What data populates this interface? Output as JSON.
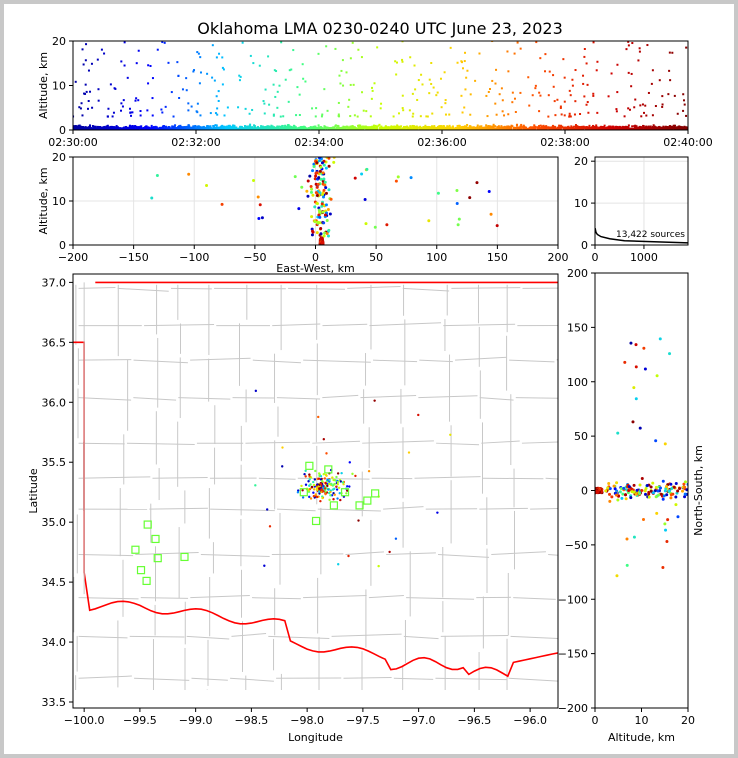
{
  "figure": {
    "title": "Oklahoma LMA 0230-0240 UTC June 23, 2023",
    "source_count_label": "13,422 sources"
  },
  "chart_data": [
    {
      "panel": "altitude-time",
      "type": "scatter",
      "xlabel": "",
      "ylabel": "Altitude, km",
      "x_ticks": [
        "02:30:00",
        "02:32:00",
        "02:34:00",
        "02:36:00",
        "02:38:00",
        "02:40:00"
      ],
      "xlim": [
        "02:30:00",
        "02:40:00"
      ],
      "ylim": [
        0,
        20
      ],
      "y_ticks": [
        0,
        10,
        20
      ],
      "color_by": "time",
      "colormap": [
        "#0000a0",
        "#0000ff",
        "#00c8ff",
        "#40ff80",
        "#c8ff00",
        "#ffd000",
        "#ff5000",
        "#d00000",
        "#800000"
      ],
      "note": "dense band of sources 0-3 km throughout; sparse sources up to 20 km"
    },
    {
      "panel": "altitude-eastwest",
      "type": "scatter",
      "xlabel": "East-West, km",
      "ylabel": "Altitude, km",
      "xlim": [
        -200,
        200
      ],
      "ylim": [
        0,
        20
      ],
      "x_ticks": [
        -200,
        -150,
        -100,
        -50,
        0,
        50,
        100,
        150,
        200
      ],
      "y_ticks": [
        0,
        10,
        20
      ],
      "grid": true
    },
    {
      "panel": "altitude-histogram",
      "type": "line",
      "xlabel": "",
      "ylabel": "",
      "xlim": [
        0,
        1900
      ],
      "ylim": [
        0,
        21
      ],
      "x_ticks": [
        0,
        1000
      ],
      "y_ticks": [
        0,
        10,
        20
      ],
      "x": [
        1900,
        600,
        300,
        120,
        50,
        20,
        10,
        5
      ],
      "y": [
        0.5,
        1.0,
        1.5,
        2.0,
        2.5,
        3.0,
        3.5,
        4.0
      ]
    },
    {
      "panel": "map",
      "type": "scatter",
      "xlabel": "Longitude",
      "ylabel": "Latitude",
      "xlim": [
        -100.1,
        -95.75
      ],
      "ylim": [
        33.45,
        37.07
      ],
      "x_ticks": [
        -100.0,
        -99.5,
        -99.0,
        -98.5,
        -98.0,
        -97.5,
        -97.0,
        -96.5,
        -96.0
      ],
      "y_ticks": [
        33.5,
        34.0,
        34.5,
        35.0,
        35.5,
        36.0,
        36.5,
        37.0
      ],
      "stations": [
        [
          -97.98,
          35.47
        ],
        [
          -97.81,
          35.44
        ],
        [
          -98.03,
          35.25
        ],
        [
          -97.92,
          35.01
        ],
        [
          -97.76,
          35.14
        ],
        [
          -97.66,
          35.25
        ],
        [
          -97.53,
          35.14
        ],
        [
          -97.46,
          35.18
        ],
        [
          -97.39,
          35.24
        ],
        [
          -99.43,
          34.98
        ],
        [
          -99.36,
          34.86
        ],
        [
          -99.54,
          34.77
        ],
        [
          -99.34,
          34.7
        ],
        [
          -99.1,
          34.71
        ],
        [
          -99.49,
          34.6
        ],
        [
          -99.44,
          34.51
        ]
      ]
    },
    {
      "panel": "northsouth-altitude",
      "type": "scatter",
      "xlabel": "Altitude, km",
      "ylabel": "North-South, km",
      "xlim": [
        0,
        20
      ],
      "ylim": [
        -200,
        200
      ],
      "x_ticks": [
        0,
        10,
        20
      ],
      "y_ticks": [
        -200,
        -150,
        -100,
        -50,
        0,
        50,
        100,
        150,
        200
      ]
    }
  ]
}
